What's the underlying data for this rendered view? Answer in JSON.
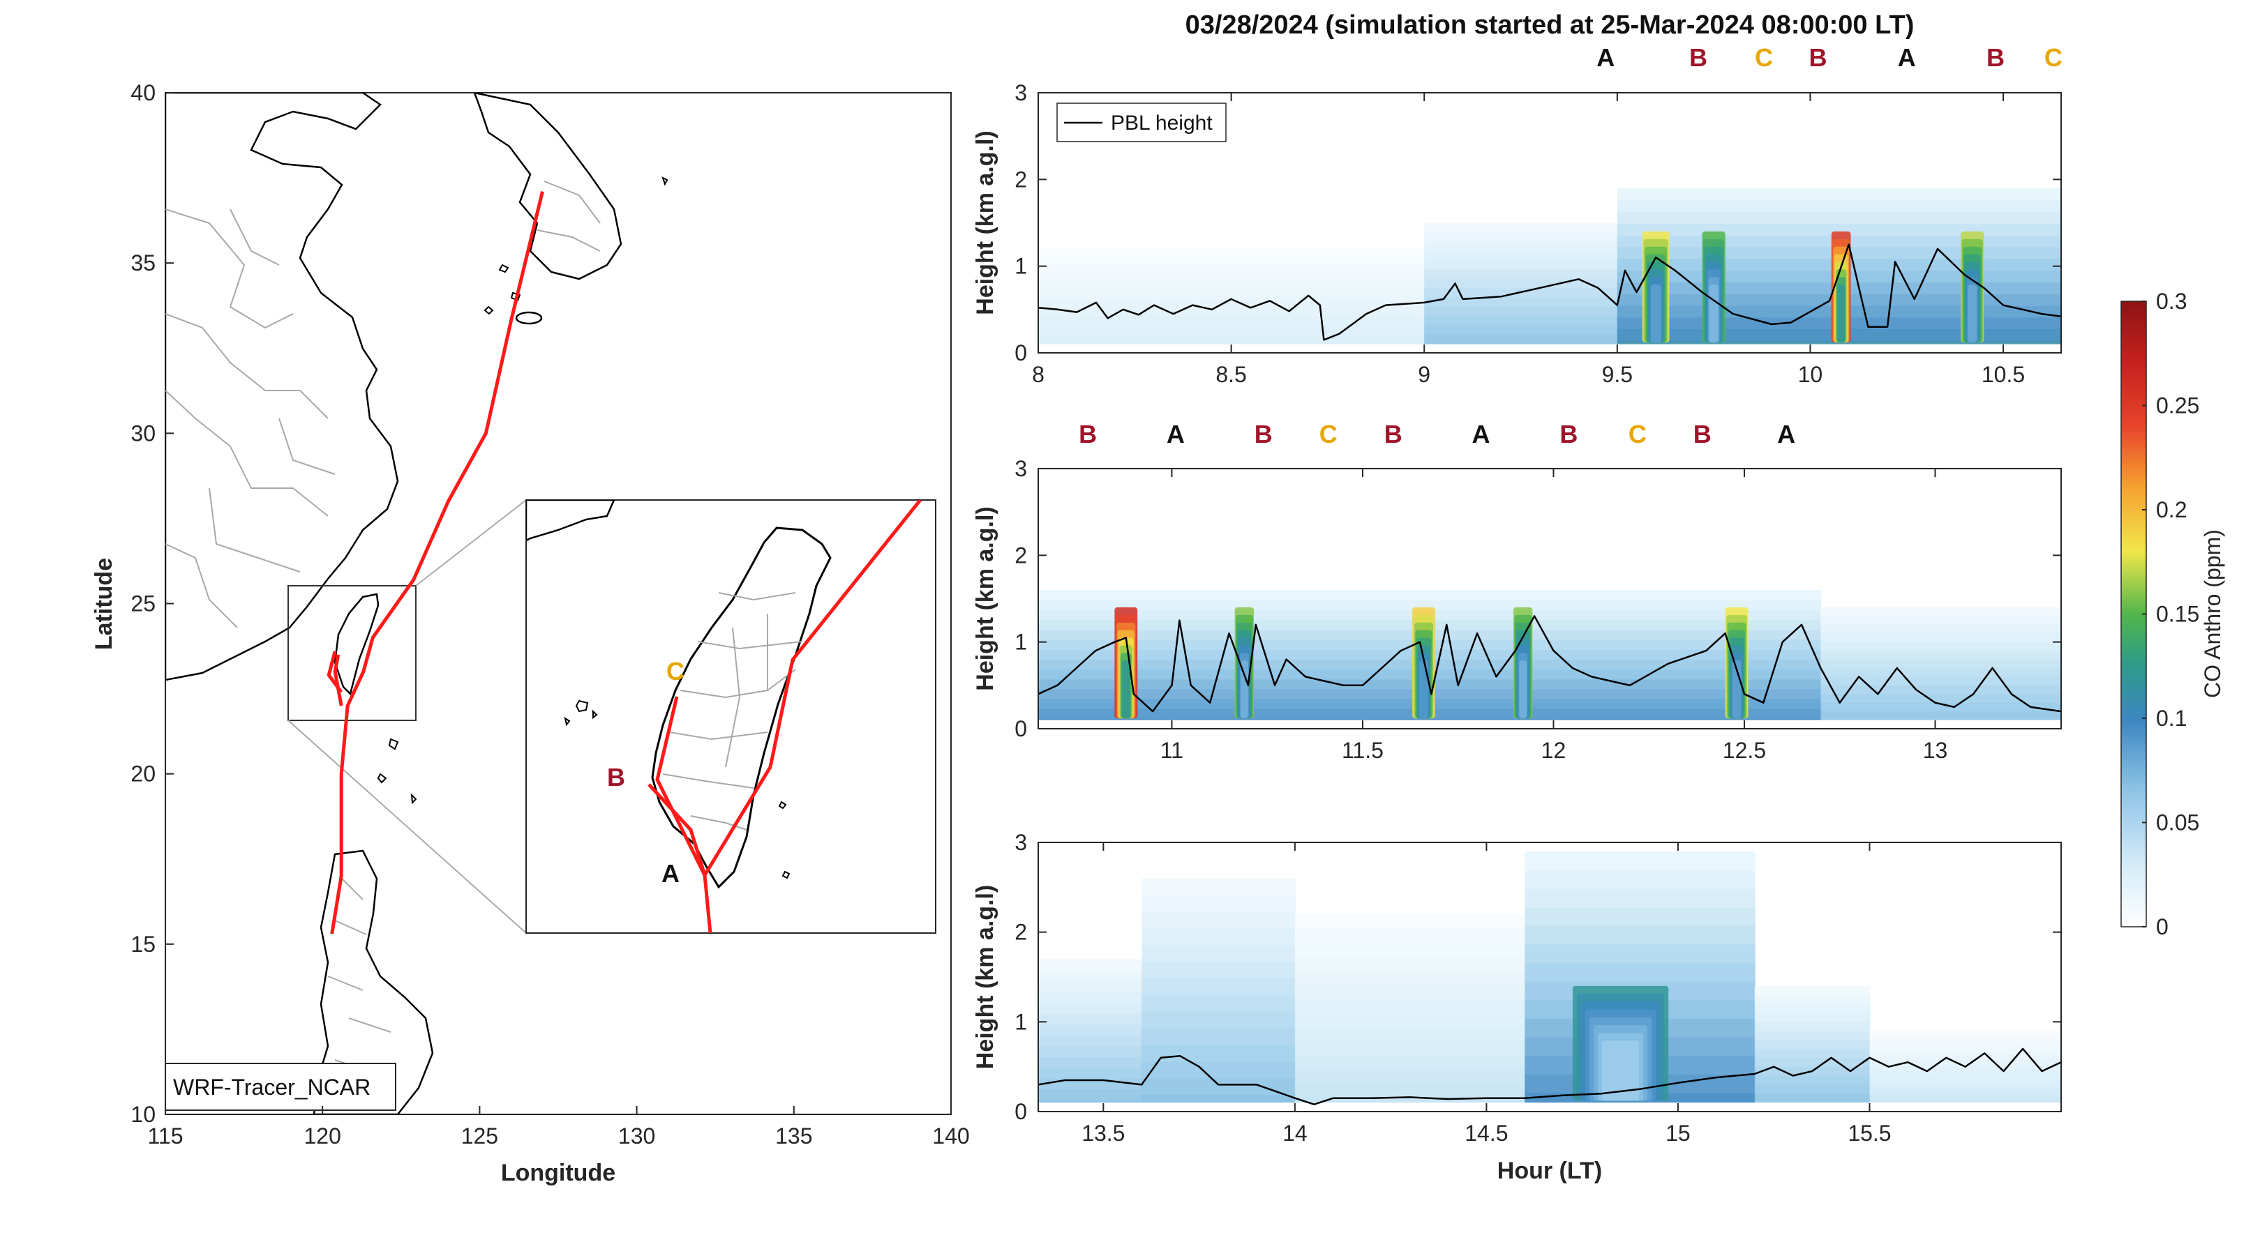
{
  "chart_data": [
    {
      "type": "map",
      "xlabel": "Longitude",
      "ylabel": "Latitude",
      "xlim": [
        115,
        140
      ],
      "ylim": [
        10,
        40
      ],
      "xticks": [
        "115",
        "120",
        "125",
        "130",
        "135",
        "140"
      ],
      "yticks": [
        "10",
        "15",
        "20",
        "25",
        "30",
        "35",
        "40"
      ],
      "legend_box": "WRF-Tracer_NCAR",
      "track_color": "#ff1a1a",
      "track_main": [
        [
          127.0,
          37.1
        ],
        [
          126.0,
          33.3
        ],
        [
          125.2,
          30.0
        ],
        [
          124.0,
          28.0
        ],
        [
          122.9,
          25.7
        ],
        [
          121.6,
          24.0
        ],
        [
          121.3,
          23.0
        ],
        [
          120.8,
          22.0
        ],
        [
          120.6,
          20.0
        ],
        [
          120.6,
          17.0
        ],
        [
          120.3,
          15.3
        ]
      ],
      "track_branch_1": [
        [
          120.6,
          22.0
        ],
        [
          120.4,
          23.0
        ],
        [
          120.5,
          23.5
        ]
      ],
      "track_branch_2": [
        [
          120.6,
          22.4
        ],
        [
          120.2,
          22.9
        ],
        [
          120.4,
          23.6
        ]
      ],
      "inset_labels": [
        {
          "text": "C",
          "color": "#e8a600"
        },
        {
          "text": "B",
          "color": "#a0142a"
        },
        {
          "text": "A",
          "color": "#111111"
        }
      ]
    },
    {
      "type": "heatmap",
      "title": "03/28/2024 (simulation started at 25-Mar-2024 08:00:00 LT)",
      "xlabel": "Hour (LT)",
      "ylabel": "Height (km a.g.l)",
      "colorbar_label": "CO Anthro (ppm)",
      "colorbar_ticks": [
        "0",
        "0.05",
        "0.1",
        "0.15",
        "0.2",
        "0.25",
        "0.3"
      ],
      "clim": [
        0,
        0.3
      ],
      "legend": "PBL height",
      "legend_placement": "top-left",
      "panels": [
        {
          "xlim": [
            8.0,
            10.65
          ],
          "ylim": [
            0,
            3
          ],
          "xticks": [
            "8",
            "8.5",
            "9",
            "9.5",
            "10",
            "10.5"
          ],
          "yticks": [
            "0",
            "1",
            "2",
            "3"
          ],
          "markers": [
            {
              "text": "A",
              "hour": 9.47,
              "color": "#111111"
            },
            {
              "text": "B",
              "hour": 9.71,
              "color": "#a0142a"
            },
            {
              "text": "C",
              "hour": 9.88,
              "color": "#e8a600"
            },
            {
              "text": "B",
              "hour": 10.02,
              "color": "#a0142a"
            },
            {
              "text": "A",
              "hour": 10.25,
              "color": "#111111"
            },
            {
              "text": "B",
              "hour": 10.48,
              "color": "#a0142a"
            },
            {
              "text": "C",
              "hour": 10.63,
              "color": "#e8a600"
            }
          ],
          "pbl_height": [
            [
              8.0,
              0.52
            ],
            [
              8.05,
              0.5
            ],
            [
              8.1,
              0.47
            ],
            [
              8.15,
              0.58
            ],
            [
              8.18,
              0.4
            ],
            [
              8.22,
              0.5
            ],
            [
              8.26,
              0.44
            ],
            [
              8.3,
              0.55
            ],
            [
              8.35,
              0.45
            ],
            [
              8.4,
              0.55
            ],
            [
              8.45,
              0.5
            ],
            [
              8.5,
              0.62
            ],
            [
              8.55,
              0.52
            ],
            [
              8.6,
              0.6
            ],
            [
              8.65,
              0.48
            ],
            [
              8.7,
              0.66
            ],
            [
              8.73,
              0.55
            ],
            [
              8.74,
              0.15
            ],
            [
              8.78,
              0.22
            ],
            [
              8.85,
              0.45
            ],
            [
              8.9,
              0.55
            ],
            [
              9.0,
              0.58
            ],
            [
              9.05,
              0.62
            ],
            [
              9.08,
              0.8
            ],
            [
              9.1,
              0.62
            ],
            [
              9.2,
              0.65
            ],
            [
              9.3,
              0.75
            ],
            [
              9.4,
              0.85
            ],
            [
              9.45,
              0.75
            ],
            [
              9.5,
              0.55
            ],
            [
              9.52,
              0.95
            ],
            [
              9.55,
              0.7
            ],
            [
              9.6,
              1.1
            ],
            [
              9.65,
              0.95
            ],
            [
              9.72,
              0.7
            ],
            [
              9.8,
              0.45
            ],
            [
              9.9,
              0.33
            ],
            [
              9.95,
              0.35
            ],
            [
              10.05,
              0.6
            ],
            [
              10.1,
              1.25
            ],
            [
              10.15,
              0.3
            ],
            [
              10.2,
              0.3
            ],
            [
              10.22,
              1.05
            ],
            [
              10.27,
              0.62
            ],
            [
              10.33,
              1.2
            ],
            [
              10.4,
              0.9
            ],
            [
              10.45,
              0.75
            ],
            [
              10.5,
              0.55
            ],
            [
              10.55,
              0.5
            ],
            [
              10.6,
              0.45
            ],
            [
              10.65,
              0.42
            ]
          ],
          "co_hotspots": [
            {
              "hour_center": 9.6,
              "width_h": 0.07,
              "peak_ppm": 0.18
            },
            {
              "hour_center": 9.75,
              "width_h": 0.06,
              "peak_ppm": 0.15
            },
            {
              "hour_center": 10.08,
              "width_h": 0.05,
              "peak_ppm": 0.25
            },
            {
              "hour_center": 10.42,
              "width_h": 0.06,
              "peak_ppm": 0.17
            }
          ],
          "co_background": [
            {
              "hour_from": 8.0,
              "hour_to": 9.0,
              "top_km": 1.2,
              "ppm": 0.03
            },
            {
              "hour_from": 9.0,
              "hour_to": 9.5,
              "top_km": 1.5,
              "ppm": 0.07
            },
            {
              "hour_from": 9.5,
              "hour_to": 10.65,
              "top_km": 1.9,
              "ppm": 0.11
            }
          ]
        },
        {
          "xlim": [
            10.65,
            13.33
          ],
          "ylim": [
            0,
            3
          ],
          "xticks": [
            "11",
            "11.5",
            "12",
            "12.5",
            "13"
          ],
          "yticks": [
            "0",
            "1",
            "2",
            "3"
          ],
          "markers": [
            {
              "text": "B",
              "hour": 10.78,
              "color": "#a0142a"
            },
            {
              "text": "A",
              "hour": 11.01,
              "color": "#111111"
            },
            {
              "text": "B",
              "hour": 11.24,
              "color": "#a0142a"
            },
            {
              "text": "C",
              "hour": 11.41,
              "color": "#e8a600"
            },
            {
              "text": "B",
              "hour": 11.58,
              "color": "#a0142a"
            },
            {
              "text": "A",
              "hour": 11.81,
              "color": "#111111"
            },
            {
              "text": "B",
              "hour": 12.04,
              "color": "#a0142a"
            },
            {
              "text": "C",
              "hour": 12.22,
              "color": "#e8a600"
            },
            {
              "text": "B",
              "hour": 12.39,
              "color": "#a0142a"
            },
            {
              "text": "A",
              "hour": 12.61,
              "color": "#111111"
            }
          ],
          "pbl_height": [
            [
              10.65,
              0.4
            ],
            [
              10.7,
              0.5
            ],
            [
              10.75,
              0.7
            ],
            [
              10.8,
              0.9
            ],
            [
              10.85,
              1.0
            ],
            [
              10.88,
              1.05
            ],
            [
              10.9,
              0.4
            ],
            [
              10.95,
              0.2
            ],
            [
              11.0,
              0.5
            ],
            [
              11.02,
              1.25
            ],
            [
              11.05,
              0.5
            ],
            [
              11.1,
              0.3
            ],
            [
              11.15,
              1.1
            ],
            [
              11.2,
              0.5
            ],
            [
              11.22,
              1.2
            ],
            [
              11.27,
              0.5
            ],
            [
              11.3,
              0.8
            ],
            [
              11.35,
              0.6
            ],
            [
              11.4,
              0.55
            ],
            [
              11.45,
              0.5
            ],
            [
              11.5,
              0.5
            ],
            [
              11.55,
              0.7
            ],
            [
              11.6,
              0.9
            ],
            [
              11.65,
              1.0
            ],
            [
              11.68,
              0.4
            ],
            [
              11.72,
              1.2
            ],
            [
              11.75,
              0.5
            ],
            [
              11.8,
              1.1
            ],
            [
              11.85,
              0.6
            ],
            [
              11.9,
              0.9
            ],
            [
              11.95,
              1.3
            ],
            [
              12.0,
              0.9
            ],
            [
              12.05,
              0.7
            ],
            [
              12.1,
              0.6
            ],
            [
              12.15,
              0.55
            ],
            [
              12.2,
              0.5
            ],
            [
              12.3,
              0.75
            ],
            [
              12.4,
              0.9
            ],
            [
              12.45,
              1.1
            ],
            [
              12.5,
              0.4
            ],
            [
              12.55,
              0.3
            ],
            [
              12.6,
              1.0
            ],
            [
              12.65,
              1.2
            ],
            [
              12.7,
              0.7
            ],
            [
              12.75,
              0.3
            ],
            [
              12.8,
              0.6
            ],
            [
              12.85,
              0.4
            ],
            [
              12.9,
              0.7
            ],
            [
              12.95,
              0.45
            ],
            [
              13.0,
              0.3
            ],
            [
              13.05,
              0.25
            ],
            [
              13.1,
              0.4
            ],
            [
              13.15,
              0.7
            ],
            [
              13.2,
              0.4
            ],
            [
              13.25,
              0.25
            ],
            [
              13.33,
              0.2
            ]
          ],
          "co_hotspots": [
            {
              "hour_center": 10.88,
              "width_h": 0.06,
              "peak_ppm": 0.26
            },
            {
              "hour_center": 11.19,
              "width_h": 0.05,
              "peak_ppm": 0.16
            },
            {
              "hour_center": 11.66,
              "width_h": 0.06,
              "peak_ppm": 0.19
            },
            {
              "hour_center": 11.92,
              "width_h": 0.05,
              "peak_ppm": 0.16
            },
            {
              "hour_center": 12.48,
              "width_h": 0.06,
              "peak_ppm": 0.18
            }
          ],
          "co_background": [
            {
              "hour_from": 10.65,
              "hour_to": 12.7,
              "top_km": 1.6,
              "ppm": 0.1
            },
            {
              "hour_from": 12.7,
              "hour_to": 13.33,
              "top_km": 1.4,
              "ppm": 0.07
            }
          ]
        },
        {
          "xlim": [
            13.33,
            16.0
          ],
          "ylim": [
            0,
            3
          ],
          "xticks": [
            "13.5",
            "14",
            "14.5",
            "15",
            "15.5"
          ],
          "yticks": [
            "0",
            "1",
            "2",
            "3"
          ],
          "markers": [],
          "pbl_height": [
            [
              13.33,
              0.3
            ],
            [
              13.4,
              0.35
            ],
            [
              13.5,
              0.35
            ],
            [
              13.6,
              0.3
            ],
            [
              13.65,
              0.6
            ],
            [
              13.7,
              0.62
            ],
            [
              13.75,
              0.5
            ],
            [
              13.8,
              0.3
            ],
            [
              13.9,
              0.3
            ],
            [
              14.0,
              0.15
            ],
            [
              14.05,
              0.08
            ],
            [
              14.1,
              0.15
            ],
            [
              14.2,
              0.15
            ],
            [
              14.3,
              0.16
            ],
            [
              14.4,
              0.14
            ],
            [
              14.5,
              0.15
            ],
            [
              14.6,
              0.15
            ],
            [
              14.7,
              0.18
            ],
            [
              14.8,
              0.2
            ],
            [
              14.9,
              0.25
            ],
            [
              15.0,
              0.32
            ],
            [
              15.1,
              0.38
            ],
            [
              15.2,
              0.42
            ],
            [
              15.25,
              0.5
            ],
            [
              15.3,
              0.4
            ],
            [
              15.35,
              0.45
            ],
            [
              15.4,
              0.6
            ],
            [
              15.45,
              0.45
            ],
            [
              15.5,
              0.6
            ],
            [
              15.55,
              0.5
            ],
            [
              15.6,
              0.55
            ],
            [
              15.65,
              0.45
            ],
            [
              15.7,
              0.6
            ],
            [
              15.75,
              0.5
            ],
            [
              15.8,
              0.65
            ],
            [
              15.85,
              0.45
            ],
            [
              15.9,
              0.7
            ],
            [
              15.95,
              0.45
            ],
            [
              16.0,
              0.55
            ]
          ],
          "co_hotspots": [
            {
              "hour_center": 14.85,
              "width_h": 0.25,
              "peak_ppm": 0.12
            }
          ],
          "co_background": [
            {
              "hour_from": 13.33,
              "hour_to": 13.6,
              "top_km": 1.7,
              "ppm": 0.07
            },
            {
              "hour_from": 13.6,
              "hour_to": 14.0,
              "top_km": 2.6,
              "ppm": 0.07
            },
            {
              "hour_from": 14.0,
              "hour_to": 14.6,
              "top_km": 2.2,
              "ppm": 0.04
            },
            {
              "hour_from": 14.6,
              "hour_to": 15.2,
              "top_km": 2.9,
              "ppm": 0.1
            },
            {
              "hour_from": 15.2,
              "hour_to": 15.5,
              "top_km": 1.4,
              "ppm": 0.07
            },
            {
              "hour_from": 15.5,
              "hour_to": 16.0,
              "top_km": 0.9,
              "ppm": 0.04
            }
          ]
        }
      ]
    }
  ]
}
